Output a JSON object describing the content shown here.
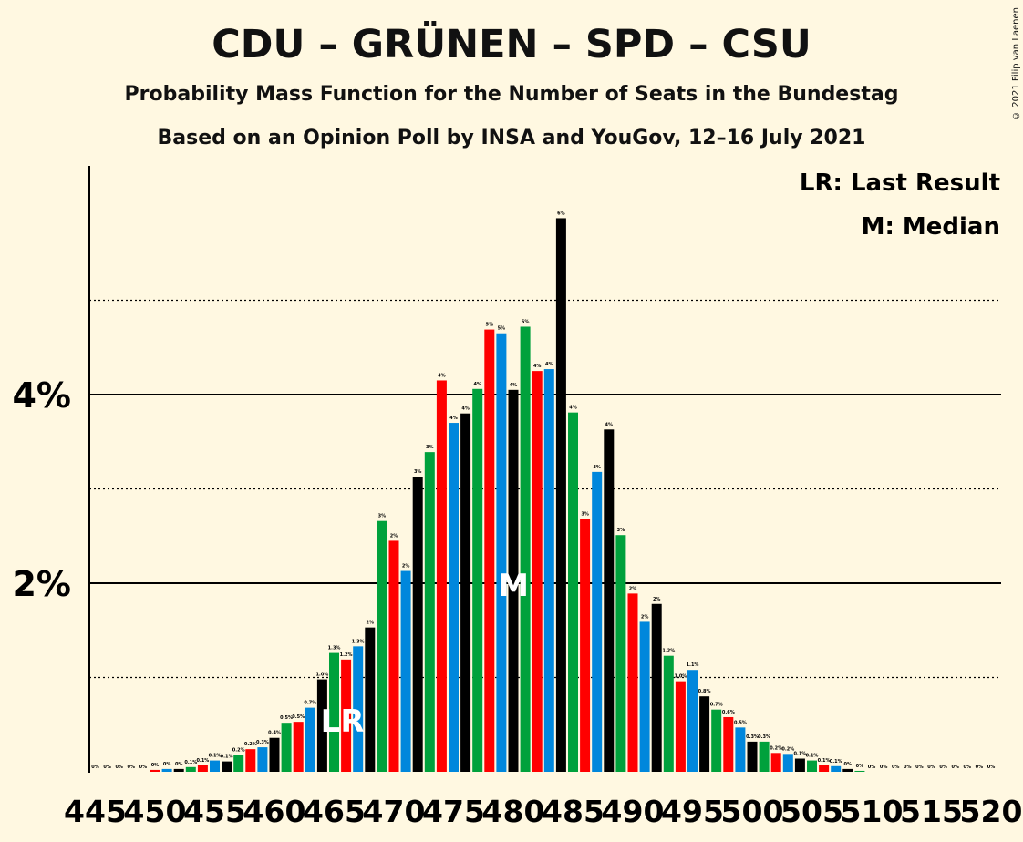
{
  "title": "CDU – GRÜNEN – SPD – CSU",
  "subtitle": "Probability Mass Function for the Number of Seats in the Bundestag",
  "poll_line": "Based on an Opinion Poll by INSA and YouGov, 12–16 July 2021",
  "copyright": "© 2021 Filip van Laenen",
  "legend": {
    "lr": "LR: Last Result",
    "m": "M: Median"
  },
  "markers": {
    "last_result_text": "LR",
    "median_text": "M",
    "last_result_seat": 466,
    "median_seat": 480
  },
  "colors": {
    "green": "#00A13C",
    "red": "#FF0000",
    "blue": "#0087DC",
    "black": "#000000",
    "background": "#FFF8E1"
  },
  "chart_data": {
    "type": "bar",
    "xlabel": "",
    "ylabel": "",
    "ylim": [
      0,
      6.4
    ],
    "ytick_labels": [
      "2%",
      "4%"
    ],
    "yticks": [
      2,
      4
    ],
    "minor_gridlines": [
      1,
      3,
      5
    ],
    "xtick_labels": [
      "445",
      "450",
      "455",
      "460",
      "465",
      "470",
      "475",
      "480",
      "485",
      "490",
      "495",
      "500",
      "505",
      "510",
      "515",
      "520"
    ],
    "seats": [
      445,
      446,
      447,
      448,
      449,
      450,
      451,
      452,
      453,
      454,
      455,
      456,
      457,
      458,
      459,
      460,
      461,
      462,
      463,
      464,
      465,
      466,
      467,
      468,
      469,
      470,
      471,
      472,
      473,
      474,
      475,
      476,
      477,
      478,
      479,
      480,
      481,
      482,
      483,
      484,
      485,
      486,
      487,
      488,
      489,
      490,
      491,
      492,
      493,
      494,
      495,
      496,
      497,
      498,
      499,
      500,
      501,
      502,
      503,
      504,
      505,
      506,
      507,
      508,
      509,
      510,
      511,
      512,
      513,
      514,
      515,
      516,
      517,
      518,
      519,
      520
    ],
    "values": [
      0,
      0,
      0,
      0,
      0,
      0.02,
      0.03,
      0.03,
      0.05,
      0.07,
      0.12,
      0.11,
      0.18,
      0.24,
      0.26,
      0.36,
      0.52,
      0.53,
      0.68,
      0.98,
      1.26,
      1.19,
      1.33,
      1.53,
      2.66,
      2.45,
      2.13,
      3.13,
      3.39,
      4.15,
      3.7,
      3.8,
      4.06,
      4.69,
      4.65,
      4.05,
      4.72,
      4.25,
      4.27,
      5.87,
      3.81,
      2.68,
      3.18,
      3.63,
      2.51,
      1.89,
      1.59,
      1.78,
      1.23,
      0.96,
      1.08,
      0.8,
      0.66,
      0.58,
      0.47,
      0.32,
      0.32,
      0.2,
      0.19,
      0.14,
      0.12,
      0.07,
      0.06,
      0.03,
      0.01,
      0,
      0,
      0,
      0,
      0,
      0,
      0,
      0,
      0,
      0,
      0
    ],
    "labels": [
      "0%",
      "0%",
      "0%",
      "0%",
      "0%",
      "0%",
      "0%",
      "0%",
      "0.1%",
      "0.1%",
      "0.1%",
      "0.1%",
      "0.2%",
      "0.2%",
      "0.3%",
      "0.4%",
      "0.5%",
      "0.5%",
      "0.7%",
      "1.0%",
      "1.3%",
      "1.2%",
      "1.3%",
      "2%",
      "3%",
      "2%",
      "2%",
      "3%",
      "3%",
      "4%",
      "4%",
      "4%",
      "4%",
      "5%",
      "5%",
      "4%",
      "5%",
      "4%",
      "4%",
      "6%",
      "4%",
      "3%",
      "3%",
      "4%",
      "3%",
      "2%",
      "2%",
      "2%",
      "1.2%",
      "1.0%",
      "1.1%",
      "0.8%",
      "0.7%",
      "0.6%",
      "0.5%",
      "0.3%",
      "0.3%",
      "0.2%",
      "0.2%",
      "0.1%",
      "0.1%",
      "0.1%",
      "0.1%",
      "0%",
      "0%",
      "0%",
      "0%",
      "0%",
      "0%",
      "0%",
      "0%",
      "0%",
      "0%",
      "0%",
      "0%",
      "0%"
    ],
    "color_cycle": [
      "green",
      "red",
      "blue",
      "black"
    ]
  }
}
